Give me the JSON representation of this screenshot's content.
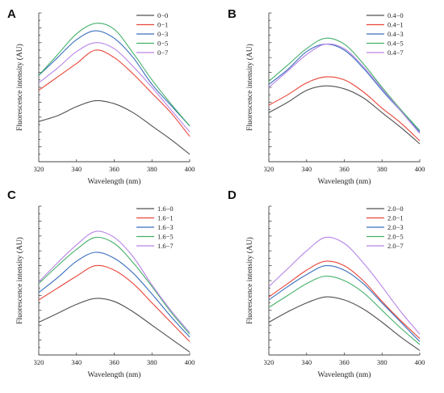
{
  "chart_data": [
    {
      "type": "line",
      "panel_label": "A",
      "xlabel": "Wavelength (nm)",
      "ylabel": "Fluorescence intensity (AU)",
      "xlim": [
        320,
        400
      ],
      "x_ticks": [
        "320",
        "340",
        "360",
        "380",
        "400"
      ],
      "ylim": [
        0,
        1
      ],
      "y_ticks_labeled": false,
      "legend": "top-right",
      "x": [
        320,
        330,
        340,
        350,
        360,
        370,
        380,
        390,
        400
      ],
      "series": [
        {
          "name": "0−0",
          "color": "#505050",
          "values": [
            0.27,
            0.31,
            0.37,
            0.41,
            0.39,
            0.33,
            0.24,
            0.15,
            0.05
          ]
        },
        {
          "name": "0−1",
          "color": "#e8463a",
          "values": [
            0.48,
            0.57,
            0.66,
            0.75,
            0.7,
            0.59,
            0.46,
            0.33,
            0.17
          ]
        },
        {
          "name": "0−3",
          "color": "#3a6fbd",
          "values": [
            0.58,
            0.7,
            0.82,
            0.88,
            0.83,
            0.7,
            0.52,
            0.38,
            0.24
          ]
        },
        {
          "name": "0−5",
          "color": "#45b06a",
          "values": [
            0.58,
            0.72,
            0.86,
            0.93,
            0.89,
            0.73,
            0.55,
            0.39,
            0.24
          ]
        },
        {
          "name": "0−7",
          "color": "#b784e8",
          "values": [
            0.53,
            0.63,
            0.74,
            0.8,
            0.76,
            0.64,
            0.5,
            0.35,
            0.2
          ]
        }
      ]
    },
    {
      "type": "line",
      "panel_label": "B",
      "xlabel": "Wavelength (nm)",
      "ylabel": "Fluorescence intensity (AU)",
      "xlim": [
        320,
        400
      ],
      "x_ticks": [
        "320",
        "340",
        "360",
        "380",
        "400"
      ],
      "ylim": [
        0,
        1
      ],
      "y_ticks_labeled": false,
      "legend": "top-right",
      "x": [
        320,
        330,
        340,
        350,
        360,
        370,
        380,
        390,
        400
      ],
      "series": [
        {
          "name": "0.4−0",
          "color": "#505050",
          "values": [
            0.33,
            0.4,
            0.48,
            0.51,
            0.49,
            0.43,
            0.33,
            0.23,
            0.12
          ]
        },
        {
          "name": "0.4−1",
          "color": "#e8463a",
          "values": [
            0.38,
            0.45,
            0.53,
            0.57,
            0.55,
            0.47,
            0.36,
            0.26,
            0.14
          ]
        },
        {
          "name": "0.4−3",
          "color": "#3a6fbd",
          "values": [
            0.52,
            0.62,
            0.74,
            0.79,
            0.75,
            0.63,
            0.48,
            0.34,
            0.2
          ]
        },
        {
          "name": "0.4−5",
          "color": "#45b06a",
          "values": [
            0.54,
            0.65,
            0.76,
            0.83,
            0.79,
            0.66,
            0.5,
            0.35,
            0.21
          ]
        },
        {
          "name": "0.4−7",
          "color": "#b784e8",
          "values": [
            0.5,
            0.61,
            0.72,
            0.79,
            0.76,
            0.64,
            0.49,
            0.34,
            0.19
          ]
        }
      ]
    },
    {
      "type": "line",
      "panel_label": "C",
      "xlabel": "Wavelength (nm)",
      "ylabel": "Fluorescence intensity (AU)",
      "xlim": [
        320,
        400
      ],
      "x_ticks": [
        "320",
        "340",
        "360",
        "380",
        "400"
      ],
      "ylim": [
        0,
        1
      ],
      "y_ticks_labeled": false,
      "legend": "top-right",
      "x": [
        320,
        330,
        340,
        350,
        360,
        370,
        380,
        390,
        400
      ],
      "series": [
        {
          "name": "1.6−0",
          "color": "#505050",
          "values": [
            0.22,
            0.28,
            0.34,
            0.38,
            0.36,
            0.29,
            0.2,
            0.11,
            0.02
          ]
        },
        {
          "name": "1.6−1",
          "color": "#e8463a",
          "values": [
            0.37,
            0.45,
            0.53,
            0.6,
            0.57,
            0.48,
            0.35,
            0.22,
            0.09
          ]
        },
        {
          "name": "1.6−3",
          "color": "#3a6fbd",
          "values": [
            0.42,
            0.52,
            0.63,
            0.69,
            0.65,
            0.55,
            0.41,
            0.26,
            0.12
          ]
        },
        {
          "name": "1.6−5",
          "color": "#45b06a",
          "values": [
            0.48,
            0.6,
            0.71,
            0.79,
            0.75,
            0.62,
            0.46,
            0.29,
            0.14
          ]
        },
        {
          "name": "1.6−7",
          "color": "#b784e8",
          "values": [
            0.49,
            0.62,
            0.74,
            0.83,
            0.79,
            0.66,
            0.47,
            0.3,
            0.15
          ]
        }
      ]
    },
    {
      "type": "line",
      "panel_label": "D",
      "xlabel": "Wavelength (nm)",
      "ylabel": "Fluorescence intensity (AU)",
      "xlim": [
        320,
        400
      ],
      "x_ticks": [
        "320",
        "340",
        "360",
        "380",
        "400"
      ],
      "ylim": [
        0,
        1
      ],
      "y_ticks_labeled": false,
      "legend": "top-right",
      "x": [
        320,
        330,
        340,
        350,
        360,
        370,
        380,
        390,
        400
      ],
      "series": [
        {
          "name": "2.0−0",
          "color": "#505050",
          "values": [
            0.22,
            0.29,
            0.35,
            0.39,
            0.37,
            0.31,
            0.22,
            0.12,
            0.03
          ]
        },
        {
          "name": "2.0−1",
          "color": "#e8463a",
          "values": [
            0.39,
            0.48,
            0.57,
            0.63,
            0.6,
            0.5,
            0.36,
            0.23,
            0.11
          ]
        },
        {
          "name": "2.0−3",
          "color": "#3a6fbd",
          "values": [
            0.37,
            0.46,
            0.54,
            0.6,
            0.57,
            0.48,
            0.35,
            0.22,
            0.09
          ]
        },
        {
          "name": "2.0−5",
          "color": "#45b06a",
          "values": [
            0.32,
            0.4,
            0.48,
            0.53,
            0.5,
            0.42,
            0.3,
            0.18,
            0.07
          ]
        },
        {
          "name": "2.0−7",
          "color": "#b784e8",
          "values": [
            0.46,
            0.58,
            0.7,
            0.79,
            0.75,
            0.62,
            0.46,
            0.29,
            0.14
          ]
        }
      ]
    }
  ]
}
